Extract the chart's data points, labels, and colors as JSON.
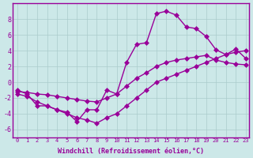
{
  "bg_color": "#cce8e8",
  "grid_color": "#aacccc",
  "line_color": "#990099",
  "xlim": [
    -0.5,
    23.3
  ],
  "ylim": [
    -7,
    10
  ],
  "xticks": [
    0,
    1,
    2,
    3,
    4,
    5,
    6,
    7,
    8,
    9,
    10,
    11,
    12,
    13,
    14,
    15,
    16,
    17,
    18,
    19,
    20,
    21,
    22,
    23
  ],
  "yticks": [
    -6,
    -4,
    -2,
    0,
    2,
    4,
    6,
    8
  ],
  "line1_x": [
    0,
    1,
    2,
    3,
    4,
    5,
    6,
    7,
    8,
    9,
    10,
    11,
    12,
    13,
    14,
    15,
    16,
    17,
    18,
    19,
    20,
    21,
    22,
    23
  ],
  "line1_y": [
    -1,
    -1.5,
    -3,
    -3,
    -3.5,
    -3.8,
    -5,
    -3.5,
    -3.5,
    -1,
    -1.5,
    2.5,
    4.8,
    5,
    8.7,
    9,
    8.5,
    7,
    6.8,
    5.8,
    4.1,
    3.5,
    4.2,
    3.0
  ],
  "line2_x": [
    0,
    1,
    2,
    3,
    4,
    5,
    6,
    7,
    8,
    9,
    10,
    11,
    12,
    13,
    14,
    15,
    16,
    17,
    18,
    19,
    20,
    21,
    22,
    23
  ],
  "line2_y": [
    -1.2,
    -1.3,
    -1.5,
    -1.6,
    -1.8,
    -2.0,
    -2.2,
    -2.4,
    -2.5,
    -2.0,
    -1.5,
    -0.5,
    0.5,
    1.2,
    2.0,
    2.5,
    2.8,
    3.0,
    3.2,
    3.4,
    2.8,
    2.5,
    2.3,
    2.2
  ],
  "line3_x": [
    0,
    1,
    2,
    3,
    4,
    5,
    6,
    7,
    8,
    9,
    10,
    11,
    12,
    13,
    14,
    15,
    16,
    17,
    18,
    19,
    20,
    21,
    22,
    23
  ],
  "line3_y": [
    -1.5,
    -1.8,
    -2.5,
    -3.0,
    -3.5,
    -4.0,
    -4.5,
    -4.8,
    -5.2,
    -4.5,
    -4.0,
    -3.0,
    -2.0,
    -1.0,
    0.0,
    0.5,
    1.0,
    1.5,
    2.0,
    2.5,
    3.0,
    3.5,
    3.8,
    4.0
  ],
  "marker": "D",
  "markersize": 3,
  "linewidth": 1.0,
  "tick_fontsize": 5,
  "xlabel": "Windchill (Refroidissement éolien,°C)",
  "xlabel_fontsize": 6
}
